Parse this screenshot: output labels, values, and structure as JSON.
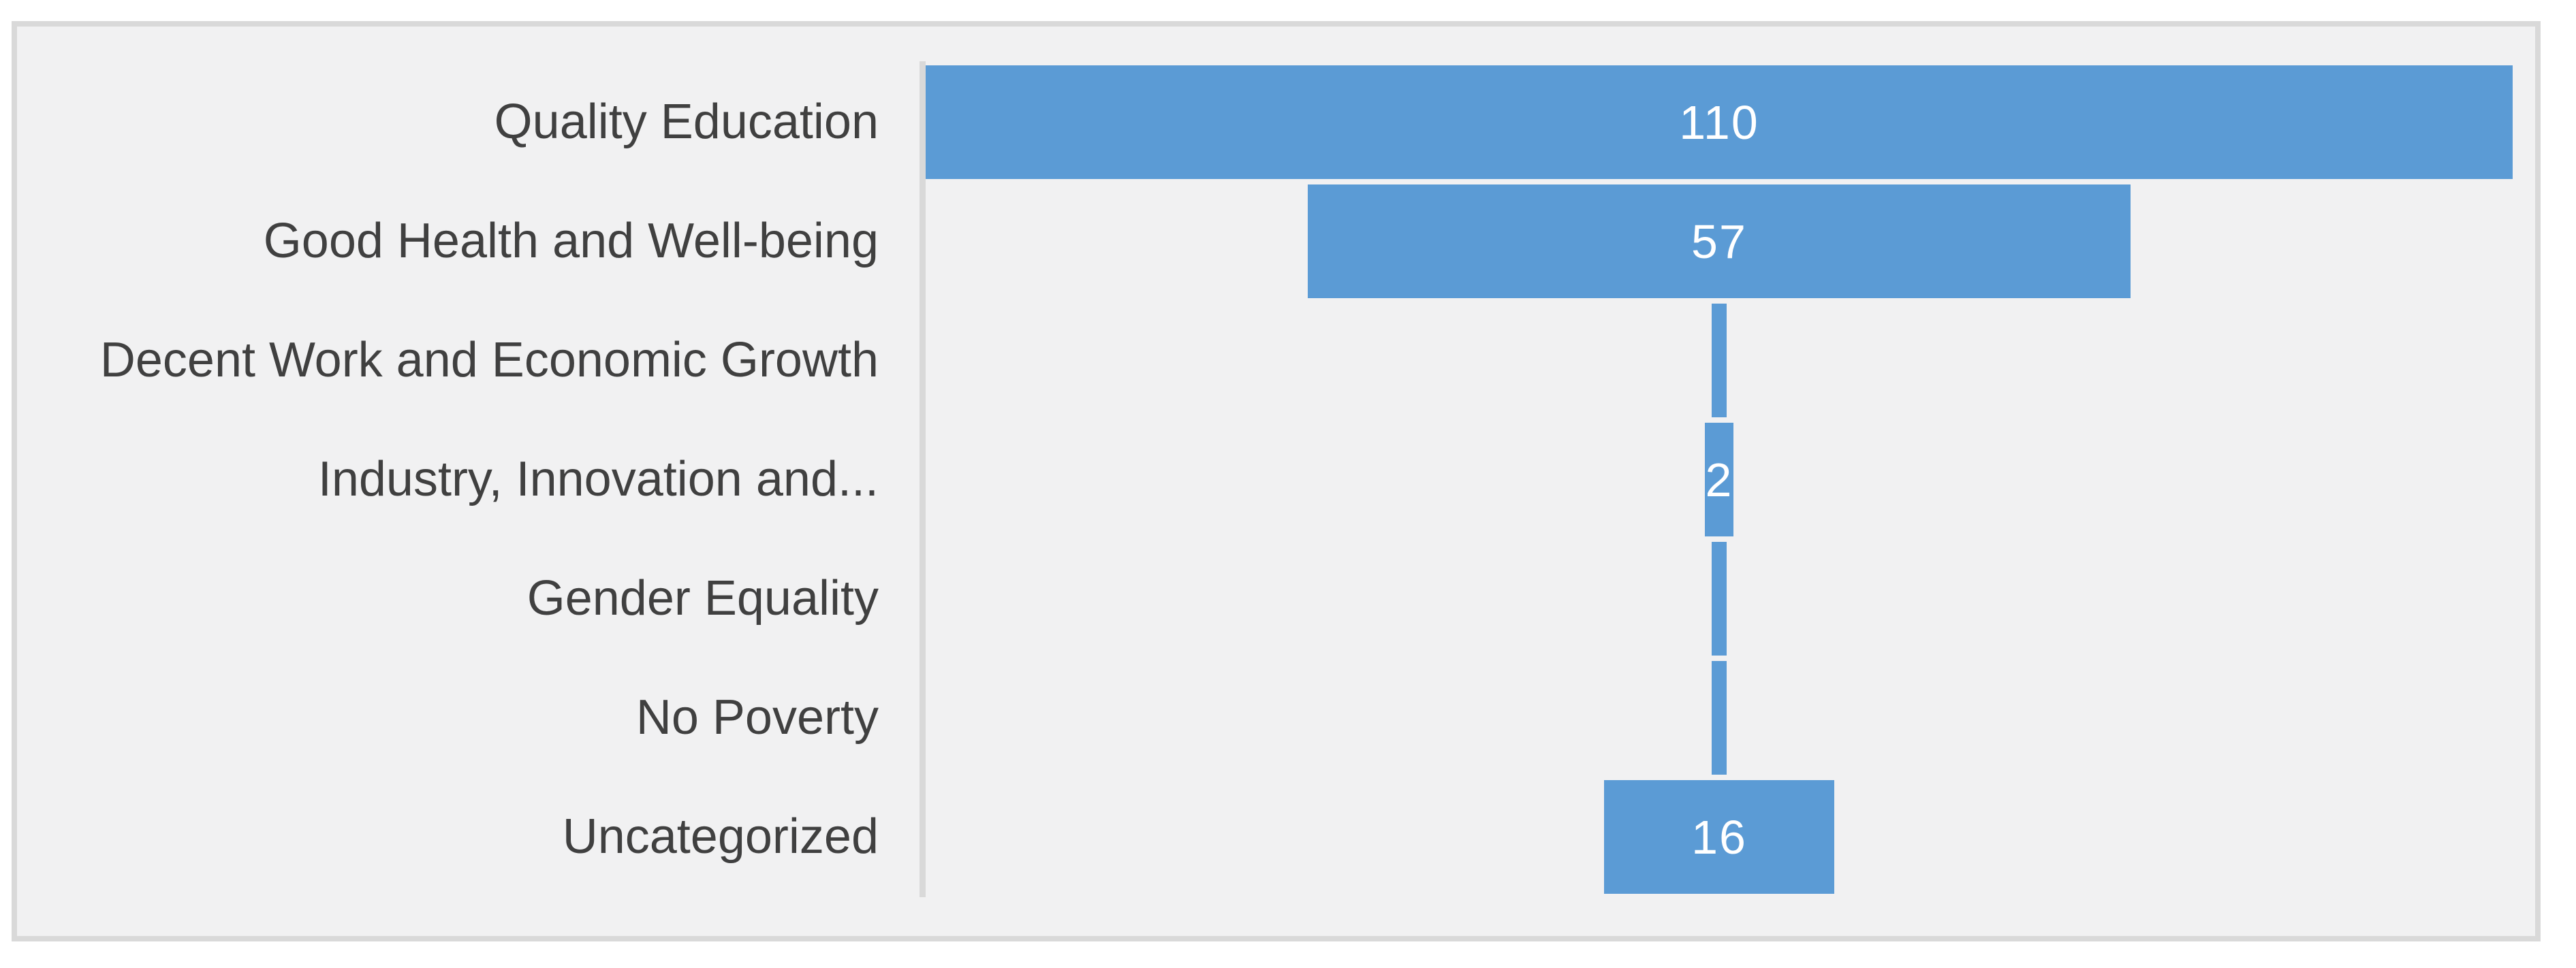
{
  "chart_data": {
    "type": "bar",
    "variant": "funnel-centered-horizontal",
    "title": "",
    "xlabel": "",
    "ylabel": "",
    "categories": [
      "Quality Education",
      "Good Health and Well-being",
      "Decent Work and Economic Growth",
      "Industry, Innovation and...",
      "Gender Equality",
      "No Poverty",
      "Uncategorized"
    ],
    "values": [
      110,
      57,
      1,
      2,
      1,
      1,
      16
    ],
    "data_labels": [
      "110",
      "57",
      "",
      "2",
      "",
      "",
      "16"
    ],
    "xlim": [
      0,
      110
    ],
    "grid": false,
    "legend": false,
    "colors": {
      "bar": "#5b9bd5",
      "category_label": "#404040",
      "value_label": "#ffffff",
      "chart_background": "#f1f1f2",
      "chart_border": "#d9d9d9",
      "axis_line": "#d9d9d9",
      "page_background": "#ffffff"
    }
  }
}
